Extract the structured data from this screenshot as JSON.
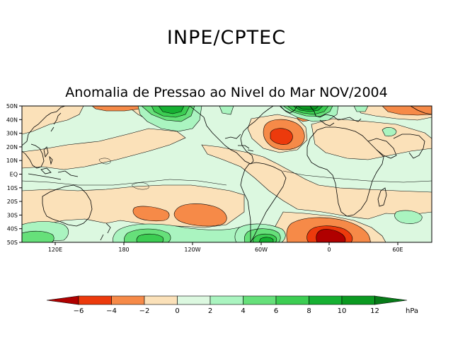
{
  "header": {
    "title": "INPE/CPTEC"
  },
  "map": {
    "title": "Anomalia de Pressao ao Nivel do Mar NOV/2004",
    "lat_labels": [
      "50N",
      "40N",
      "30N",
      "20N",
      "10N",
      "EQ",
      "10S",
      "20S",
      "30S",
      "40S",
      "50S"
    ],
    "lon_labels": [
      "120E",
      "180",
      "120W",
      "60W",
      "0",
      "60E"
    ]
  },
  "legend": {
    "unit": "hPa",
    "tick_labels": [
      "−6",
      "−4",
      "−2",
      "0",
      "2",
      "4",
      "6",
      "8",
      "10",
      "12"
    ],
    "colors": {
      "lt_-6": "#b00000",
      "-6_-4": "#ec3a0c",
      "-4_-2": "#f68a48",
      "-2_0": "#fbe1b9",
      "0_2": "#dcf8e0",
      "2_4": "#aaf4c0",
      "4_6": "#66e07a",
      "6_8": "#3ccd52",
      "8_10": "#16b032",
      "10_12": "#0b9a21",
      "gt_12": "#077b18"
    }
  }
}
